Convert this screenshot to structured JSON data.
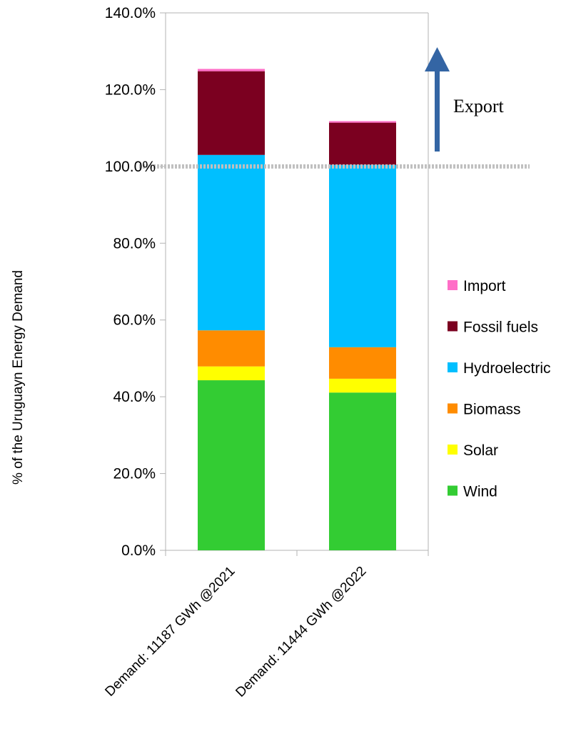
{
  "chart_data": {
    "type": "bar",
    "stacked": true,
    "title": "",
    "xlabel": "",
    "ylabel": "% of the Uruguayn Energy Demand",
    "ylim": [
      0,
      140
    ],
    "yticks": [
      0,
      20,
      40,
      60,
      80,
      100,
      120,
      140
    ],
    "ytick_labels": [
      "0.0%",
      "20.0%",
      "40.0%",
      "60.0%",
      "80.0%",
      "100.0%",
      "120.0%",
      "140.0%"
    ],
    "grid": false,
    "legend_position": "right",
    "categories": [
      "Demand:  11187 GWh @2021",
      "Demand: 11444 GWh @2022"
    ],
    "series": [
      {
        "name": "Wind",
        "color": "#33cc33",
        "values": [
          44.3,
          41.1
        ]
      },
      {
        "name": "Solar",
        "color": "#ffff00",
        "values": [
          3.6,
          3.6
        ]
      },
      {
        "name": "Biomass",
        "color": "#ff8c00",
        "values": [
          9.4,
          8.2
        ]
      },
      {
        "name": "Hydroelectric",
        "color": "#00bfff",
        "values": [
          45.7,
          47.5
        ]
      },
      {
        "name": "Fossil fuels",
        "color": "#7b0020",
        "values": [
          21.8,
          11.0
        ]
      },
      {
        "name": "Import",
        "color": "#ff6ec7",
        "values": [
          0.6,
          0.4
        ]
      }
    ],
    "reference_line": {
      "value": 100,
      "style": "dotted",
      "color": "#c0c0c0"
    },
    "annotation": {
      "text": "Export",
      "arrow": "up",
      "arrow_color": "#3465a4"
    }
  }
}
